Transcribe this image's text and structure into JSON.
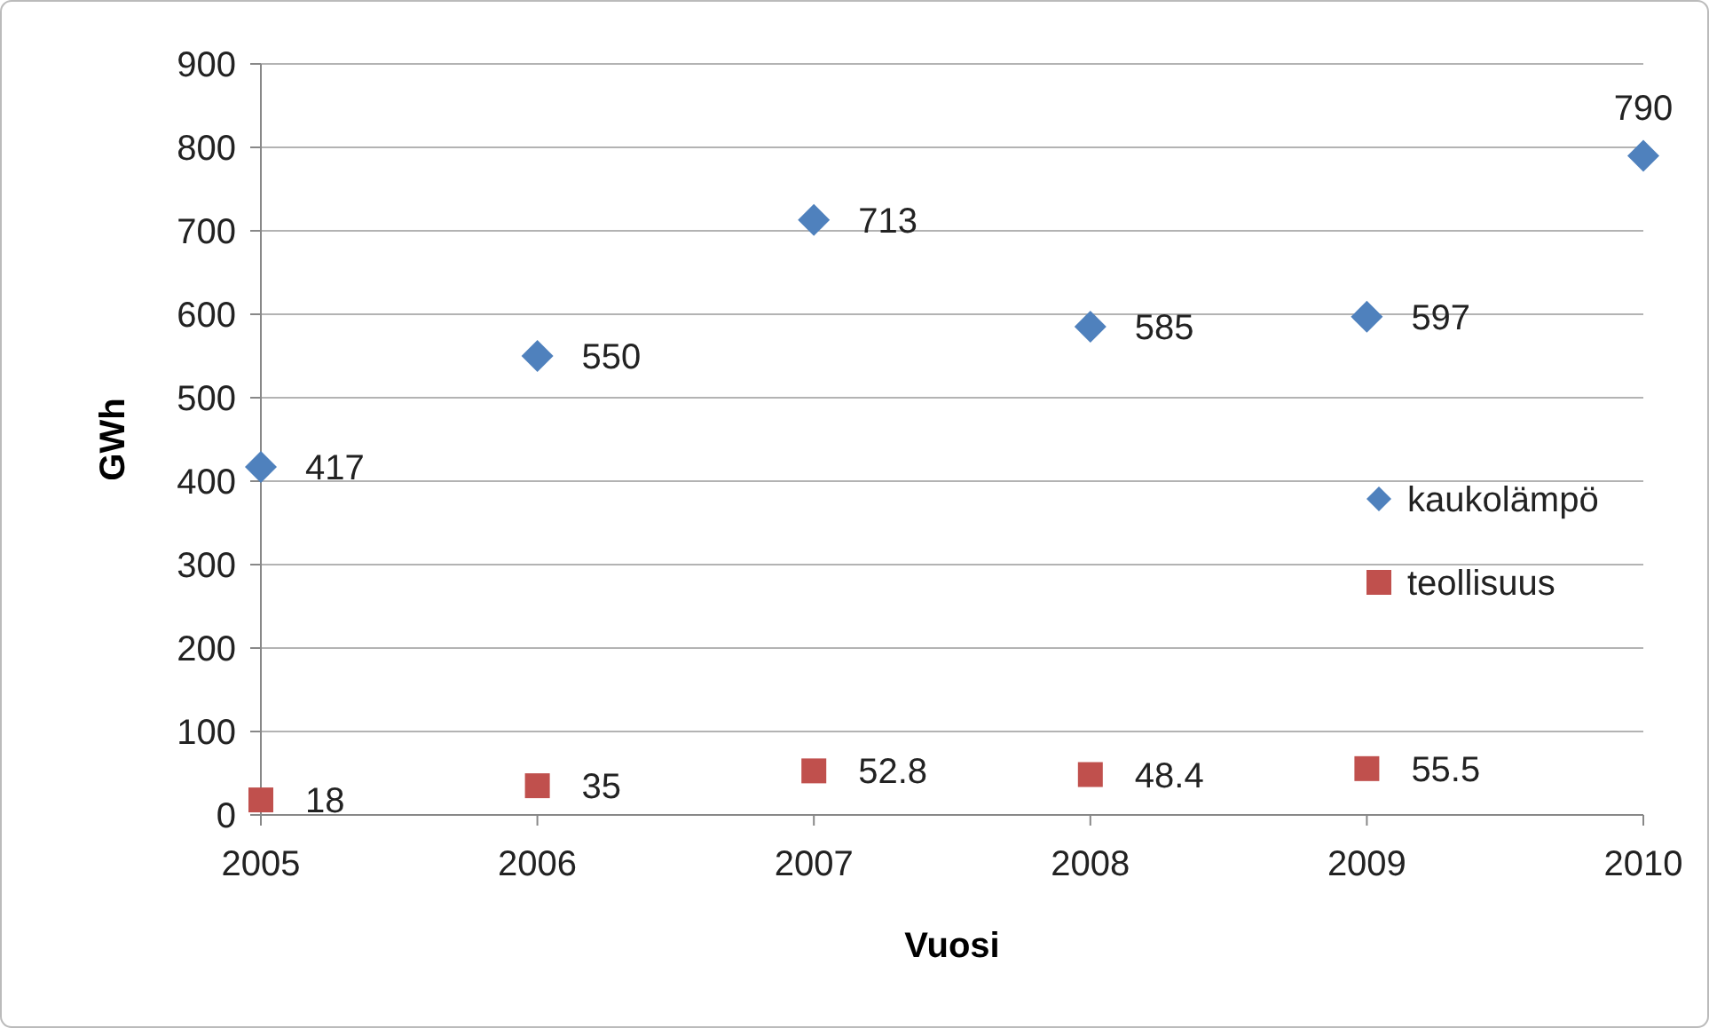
{
  "chart_data": {
    "type": "scatter",
    "xlabel": "Vuosi",
    "ylabel": "GWh",
    "x": [
      2005,
      2006,
      2007,
      2008,
      2009,
      2010
    ],
    "series": [
      {
        "name": "kaukolämpö",
        "color": "#4f81bd",
        "marker": "diamond",
        "values": [
          417,
          550,
          713,
          585,
          597,
          790
        ]
      },
      {
        "name": "teollisuus",
        "color": "#c0504d",
        "marker": "square",
        "x": [
          2005,
          2006,
          2007,
          2008,
          2009
        ],
        "values": [
          18,
          35,
          52.8,
          48.4,
          55.5
        ]
      }
    ],
    "xlim": [
      2005,
      2010
    ],
    "xticks": [
      2005,
      2006,
      2007,
      2008,
      2009,
      2010
    ],
    "ylim": [
      0,
      900
    ],
    "yticks": [
      0,
      100,
      200,
      300,
      400,
      500,
      600,
      700,
      800,
      900
    ],
    "grid": "y",
    "legend": "right",
    "data_labels": true
  }
}
